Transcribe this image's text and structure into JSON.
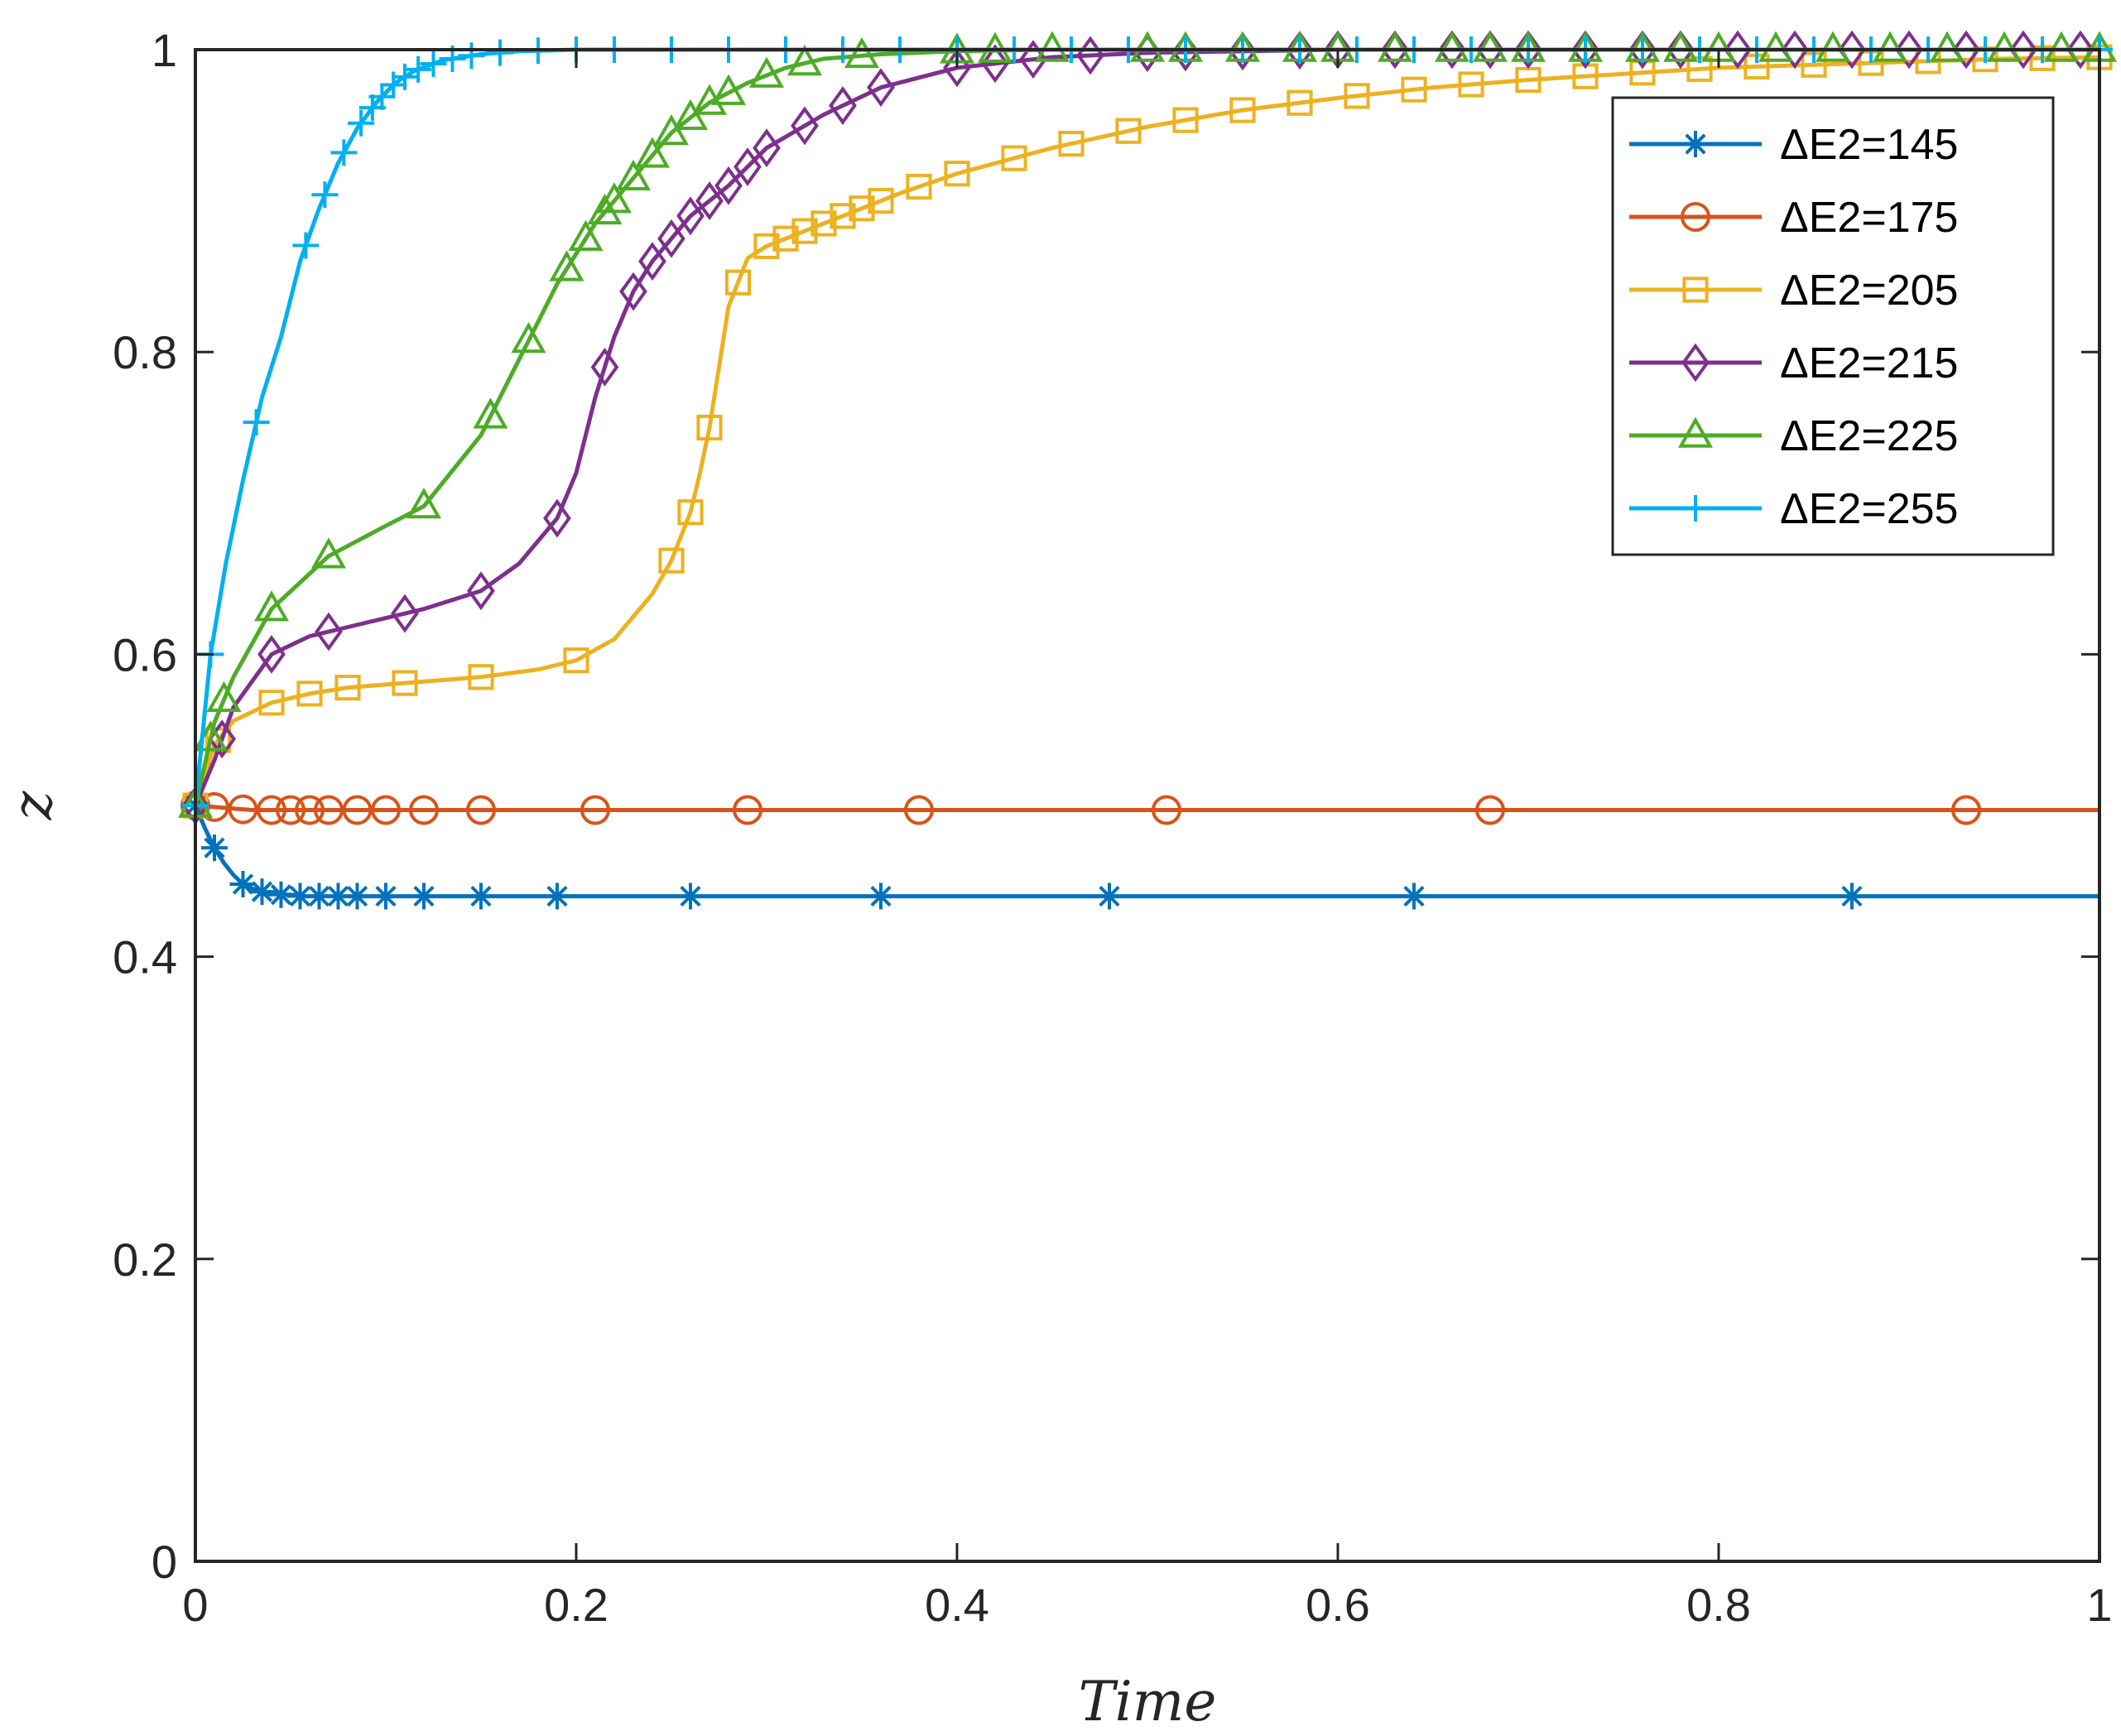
{
  "chart_data": {
    "type": "line",
    "title": "",
    "xlabel": "Time",
    "ylabel": "z",
    "xlim": [
      0,
      1
    ],
    "ylim": [
      0,
      1
    ],
    "xticks": [
      "0",
      "0.2",
      "0.4",
      "0.6",
      "0.8",
      "1"
    ],
    "yticks": [
      "0",
      "0.2",
      "0.4",
      "0.6",
      "0.8",
      "1"
    ],
    "grid": false,
    "legend_position": "top-right",
    "series": [
      {
        "name": "ΔE2=145",
        "color": "#0072BD",
        "marker": "asterisk",
        "x": [
          0,
          0.005,
          0.01,
          0.015,
          0.02,
          0.025,
          0.03,
          0.035,
          0.04,
          0.045,
          0.05,
          0.055,
          0.06,
          0.065,
          0.07,
          0.075,
          0.08,
          0.085,
          0.09,
          0.1,
          0.12,
          0.15,
          0.19,
          0.26,
          0.36,
          0.48,
          0.64,
          0.87,
          1.0
        ],
        "y": [
          0.5,
          0.485,
          0.472,
          0.462,
          0.454,
          0.448,
          0.445,
          0.443,
          0.442,
          0.441,
          0.441,
          0.44,
          0.44,
          0.44,
          0.44,
          0.44,
          0.44,
          0.44,
          0.44,
          0.44,
          0.44,
          0.44,
          0.44,
          0.44,
          0.44,
          0.44,
          0.44,
          0.44,
          0.44
        ],
        "markers_x": [
          0,
          0.01,
          0.025,
          0.035,
          0.045,
          0.055,
          0.065,
          0.075,
          0.085,
          0.1,
          0.12,
          0.15,
          0.19,
          0.26,
          0.36,
          0.48,
          0.64,
          0.87
        ]
      },
      {
        "name": "ΔE2=175",
        "color": "#D95319",
        "marker": "circle",
        "x": [
          0,
          0.01,
          0.02,
          0.03,
          0.05,
          0.1,
          0.2,
          0.4,
          0.7,
          1.0
        ],
        "y": [
          0.5,
          0.499,
          0.498,
          0.497,
          0.497,
          0.497,
          0.497,
          0.497,
          0.497,
          0.497
        ],
        "markers_x": [
          0,
          0.01,
          0.025,
          0.04,
          0.05,
          0.06,
          0.07,
          0.085,
          0.1,
          0.12,
          0.15,
          0.21,
          0.29,
          0.38,
          0.51,
          0.68,
          0.93
        ]
      },
      {
        "name": "ΔE2=205",
        "color": "#EDB120",
        "marker": "square",
        "x": [
          0,
          0.01,
          0.02,
          0.04,
          0.06,
          0.08,
          0.1,
          0.12,
          0.15,
          0.18,
          0.2,
          0.22,
          0.24,
          0.25,
          0.26,
          0.265,
          0.27,
          0.275,
          0.28,
          0.29,
          0.3,
          0.31,
          0.32,
          0.34,
          0.37,
          0.4,
          0.45,
          0.5,
          0.55,
          0.6,
          0.65,
          0.7,
          0.75,
          0.8,
          0.85,
          0.9,
          0.95,
          1.0
        ],
        "y": [
          0.5,
          0.54,
          0.556,
          0.568,
          0.574,
          0.578,
          0.58,
          0.582,
          0.585,
          0.59,
          0.596,
          0.61,
          0.64,
          0.662,
          0.694,
          0.72,
          0.75,
          0.79,
          0.83,
          0.862,
          0.87,
          0.875,
          0.88,
          0.89,
          0.905,
          0.918,
          0.935,
          0.949,
          0.96,
          0.968,
          0.975,
          0.98,
          0.984,
          0.988,
          0.99,
          0.992,
          0.994,
          0.995
        ],
        "markers_x": [
          0,
          0.012,
          0.04,
          0.06,
          0.08,
          0.11,
          0.15,
          0.2,
          0.25,
          0.26,
          0.27,
          0.285,
          0.3,
          0.31,
          0.32,
          0.33,
          0.34,
          0.35,
          0.36,
          0.38,
          0.4,
          0.43,
          0.46,
          0.49,
          0.52,
          0.55,
          0.58,
          0.61,
          0.64,
          0.67,
          0.7,
          0.73,
          0.76,
          0.79,
          0.82,
          0.85,
          0.88,
          0.91,
          0.94,
          0.97,
          1.0
        ]
      },
      {
        "name": "ΔE2=215",
        "color": "#7E2F8E",
        "marker": "diamond",
        "x": [
          0,
          0.01,
          0.02,
          0.04,
          0.06,
          0.08,
          0.1,
          0.12,
          0.15,
          0.17,
          0.19,
          0.2,
          0.21,
          0.22,
          0.23,
          0.24,
          0.25,
          0.26,
          0.28,
          0.3,
          0.33,
          0.36,
          0.4,
          0.45,
          0.5,
          0.6,
          0.7,
          0.8,
          1.0
        ],
        "y": [
          0.5,
          0.53,
          0.565,
          0.6,
          0.612,
          0.618,
          0.624,
          0.63,
          0.642,
          0.66,
          0.69,
          0.72,
          0.77,
          0.81,
          0.84,
          0.86,
          0.875,
          0.89,
          0.91,
          0.935,
          0.957,
          0.975,
          0.988,
          0.995,
          0.998,
          1.0,
          1.0,
          1.0,
          1.0
        ],
        "markers_x": [
          0,
          0.014,
          0.04,
          0.07,
          0.11,
          0.15,
          0.19,
          0.215,
          0.23,
          0.24,
          0.25,
          0.26,
          0.27,
          0.28,
          0.29,
          0.3,
          0.32,
          0.34,
          0.36,
          0.4,
          0.42,
          0.44,
          0.47,
          0.5,
          0.52,
          0.55,
          0.58,
          0.6,
          0.63,
          0.66,
          0.68,
          0.7,
          0.73,
          0.76,
          0.78,
          0.81,
          0.84,
          0.87,
          0.9,
          0.93,
          0.96,
          0.99
        ]
      },
      {
        "name": "ΔE2=225",
        "color": "#4DAC26",
        "marker": "triangle",
        "x": [
          0,
          0.01,
          0.02,
          0.04,
          0.07,
          0.1,
          0.12,
          0.15,
          0.17,
          0.19,
          0.21,
          0.23,
          0.25,
          0.27,
          0.29,
          0.31,
          0.33,
          0.36,
          0.4,
          0.45,
          0.5,
          0.6,
          0.7,
          0.8,
          1.0
        ],
        "y": [
          0.5,
          0.555,
          0.585,
          0.63,
          0.665,
          0.685,
          0.698,
          0.745,
          0.795,
          0.845,
          0.885,
          0.915,
          0.945,
          0.965,
          0.978,
          0.988,
          0.994,
          0.997,
          0.999,
          1.0,
          1.0,
          1.0,
          1.0,
          1.0,
          1.0
        ],
        "markers_x": [
          0,
          0.008,
          0.015,
          0.04,
          0.07,
          0.12,
          0.155,
          0.175,
          0.195,
          0.205,
          0.215,
          0.22,
          0.23,
          0.24,
          0.25,
          0.26,
          0.27,
          0.28,
          0.3,
          0.32,
          0.35,
          0.4,
          0.42,
          0.45,
          0.5,
          0.52,
          0.55,
          0.58,
          0.6,
          0.63,
          0.66,
          0.68,
          0.7,
          0.73,
          0.76,
          0.78,
          0.8,
          0.83,
          0.86,
          0.89,
          0.92,
          0.95,
          0.98,
          1.0
        ]
      },
      {
        "name": "ΔE2=255",
        "color": "#00B0F0",
        "marker": "plus",
        "x": [
          0,
          0.008,
          0.016,
          0.025,
          0.035,
          0.045,
          0.055,
          0.065,
          0.075,
          0.085,
          0.095,
          0.105,
          0.115,
          0.13,
          0.15,
          0.17,
          0.2,
          0.25,
          0.3,
          0.4,
          0.5,
          0.6,
          0.7,
          0.8,
          1.0
        ],
        "y": [
          0.5,
          0.6,
          0.66,
          0.715,
          0.77,
          0.81,
          0.86,
          0.895,
          0.925,
          0.948,
          0.965,
          0.978,
          0.986,
          0.993,
          0.997,
          0.999,
          1.0,
          1.0,
          1.0,
          1.0,
          1.0,
          1.0,
          1.0,
          1.0,
          1.0
        ],
        "markers_x": [
          0,
          0.008,
          0.032,
          0.058,
          0.068,
          0.078,
          0.087,
          0.093,
          0.098,
          0.104,
          0.11,
          0.117,
          0.125,
          0.135,
          0.145,
          0.16,
          0.18,
          0.2,
          0.22,
          0.25,
          0.28,
          0.31,
          0.34,
          0.37,
          0.4,
          0.43,
          0.46,
          0.49,
          0.52,
          0.55,
          0.58,
          0.61,
          0.64,
          0.67,
          0.7,
          0.73,
          0.76,
          0.79,
          0.82,
          0.85,
          0.88,
          0.91,
          0.94,
          0.97,
          1.0
        ]
      }
    ]
  }
}
